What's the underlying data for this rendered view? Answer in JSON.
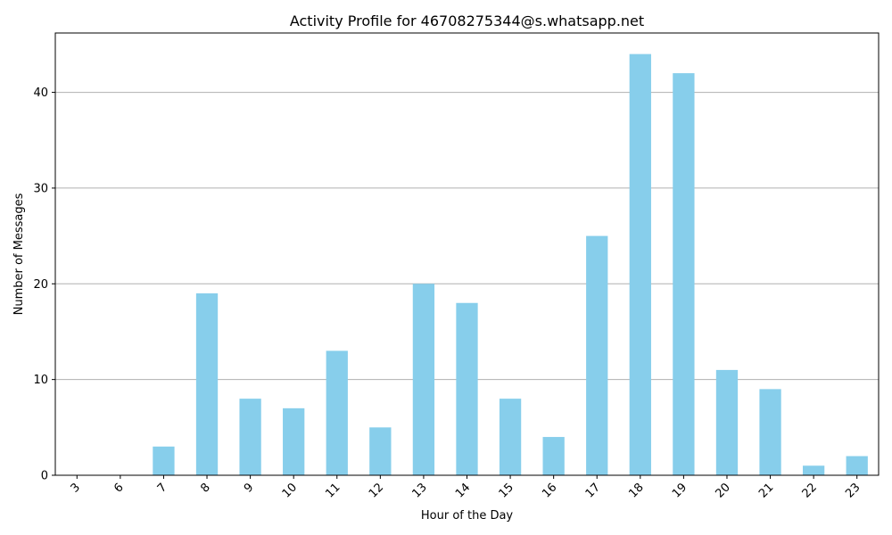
{
  "chart_data": {
    "type": "bar",
    "title": "Activity Profile for 46708275344@s.whatsapp.net",
    "xlabel": "Hour of the Day",
    "ylabel": "Number of Messages",
    "categories": [
      "3",
      "6",
      "7",
      "8",
      "9",
      "10",
      "11",
      "12",
      "13",
      "14",
      "15",
      "16",
      "17",
      "18",
      "19",
      "20",
      "21",
      "22",
      "23"
    ],
    "values": [
      0,
      0,
      3,
      19,
      8,
      7,
      13,
      5,
      20,
      18,
      8,
      4,
      25,
      44,
      42,
      11,
      9,
      1,
      2
    ],
    "ylim": [
      0,
      46.2
    ],
    "yticks": [
      0,
      10,
      20,
      30,
      40
    ],
    "grid": "y-axis horizontal lines",
    "bar_color": "#87CEEB",
    "grid_color": "#b0b0b0",
    "xtick_rotation": 45
  }
}
